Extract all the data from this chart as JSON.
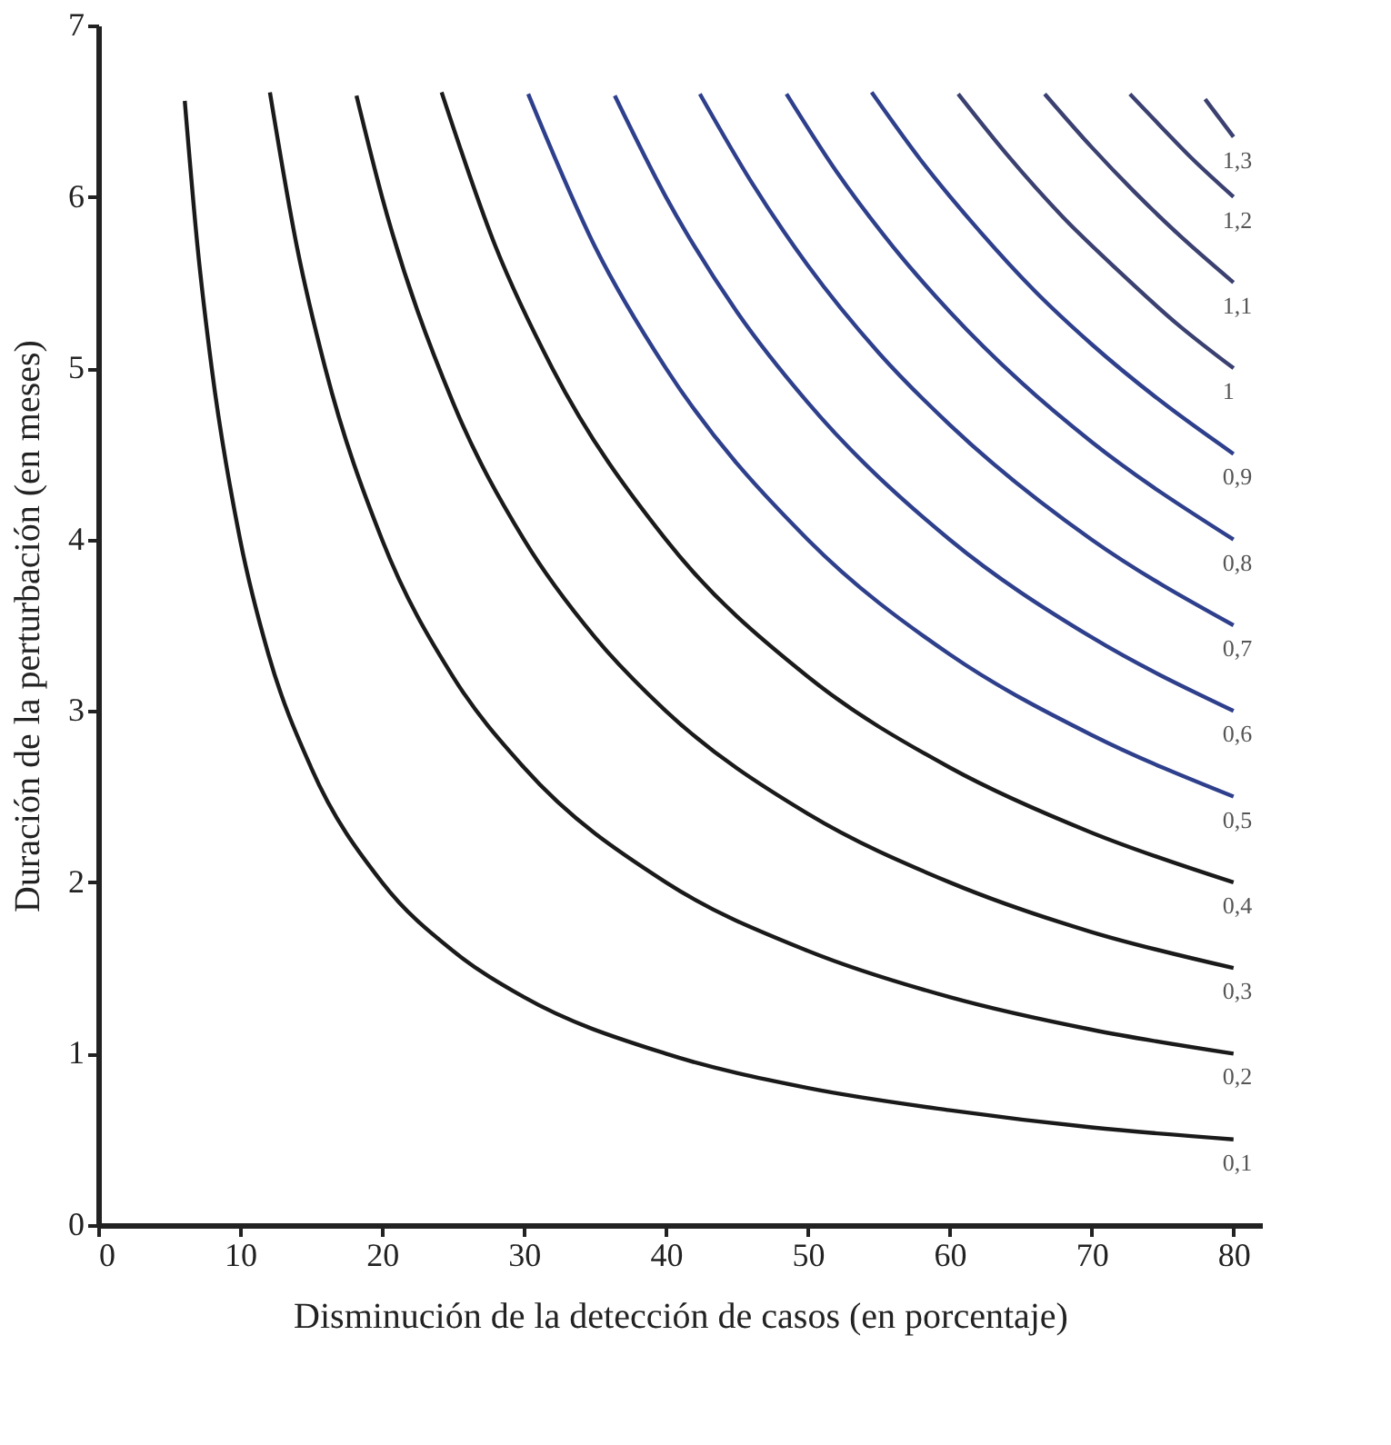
{
  "chart_data": {
    "type": "line",
    "xlabel": "Disminución de la detección de casos (en porcentaje)",
    "ylabel": "Duración de la perturbación (en meses)",
    "xlim": [
      0,
      82
    ],
    "xticks": [
      0,
      10,
      20,
      30,
      40,
      50,
      60,
      70,
      80
    ],
    "ylim": [
      0,
      7
    ],
    "yticks": [
      0,
      1,
      2,
      3,
      4,
      5,
      6,
      7
    ],
    "grid": false,
    "legend": false,
    "series": [
      {
        "name": "0,1",
        "color": "#1a1a1a",
        "x": [
          6.1,
          7,
          8,
          10,
          12,
          15,
          20,
          25,
          30,
          40,
          50,
          60,
          70,
          80
        ],
        "values": [
          6.56,
          5.71,
          5.0,
          4.0,
          3.33,
          2.67,
          2.0,
          1.6,
          1.33,
          1.0,
          0.8,
          0.67,
          0.57,
          0.5
        ]
      },
      {
        "name": "0,2",
        "color": "#1a1a1a",
        "x": [
          12.1,
          14,
          16,
          20,
          25,
          30,
          40,
          50,
          60,
          70,
          80
        ],
        "values": [
          6.61,
          5.71,
          5.0,
          4.0,
          3.2,
          2.67,
          2.0,
          1.6,
          1.33,
          1.14,
          1.0
        ]
      },
      {
        "name": "0,3",
        "color": "#1a1a1a",
        "x": [
          18.2,
          20,
          25,
          30,
          35,
          40,
          50,
          60,
          70,
          80
        ],
        "values": [
          6.59,
          6.0,
          4.8,
          4.0,
          3.43,
          3.0,
          2.4,
          2.0,
          1.71,
          1.5
        ]
      },
      {
        "name": "0,4",
        "color": "#1a1a1a",
        "x": [
          24.2,
          28,
          32,
          40,
          50,
          60,
          70,
          80
        ],
        "values": [
          6.61,
          5.71,
          5.0,
          4.0,
          3.2,
          2.67,
          2.29,
          2.0
        ]
      },
      {
        "name": "0,5",
        "color": "#2e3f8c",
        "x": [
          30.3,
          35,
          40,
          50,
          60,
          70,
          80
        ],
        "values": [
          6.6,
          5.71,
          5.0,
          4.0,
          3.33,
          2.86,
          2.5
        ]
      },
      {
        "name": "0,6",
        "color": "#2e3f8c",
        "x": [
          36.4,
          40,
          45,
          50,
          60,
          70,
          80
        ],
        "values": [
          6.59,
          6.0,
          5.33,
          4.8,
          4.0,
          3.43,
          3.0
        ]
      },
      {
        "name": "0,7",
        "color": "#2e3f8c",
        "x": [
          42.4,
          46,
          50,
          55,
          60,
          70,
          80
        ],
        "values": [
          6.6,
          6.09,
          5.6,
          5.09,
          4.67,
          4.0,
          3.5
        ]
      },
      {
        "name": "0,8",
        "color": "#2e3f8c",
        "x": [
          48.5,
          52,
          56,
          60,
          65,
          70,
          80
        ],
        "values": [
          6.6,
          6.15,
          5.71,
          5.33,
          4.92,
          4.57,
          4.0
        ]
      },
      {
        "name": "0,9",
        "color": "#2e3f8c",
        "x": [
          54.5,
          58,
          62,
          66,
          70,
          75,
          80
        ],
        "values": [
          6.61,
          6.21,
          5.81,
          5.45,
          5.14,
          4.8,
          4.5
        ]
      },
      {
        "name": "1",
        "color": "#3a4070",
        "x": [
          60.6,
          64,
          68,
          72,
          76,
          80
        ],
        "values": [
          6.6,
          6.25,
          5.88,
          5.56,
          5.26,
          5.0
        ]
      },
      {
        "name": "1,1",
        "color": "#3a4070",
        "x": [
          66.7,
          70,
          73,
          76,
          80
        ],
        "values": [
          6.6,
          6.29,
          6.03,
          5.79,
          5.5
        ]
      },
      {
        "name": "1,2",
        "color": "#3a4070",
        "x": [
          72.7,
          75,
          77,
          80
        ],
        "values": [
          6.6,
          6.4,
          6.23,
          6.0
        ]
      },
      {
        "name": "1,3",
        "color": "#3a4070",
        "x": [
          78,
          80
        ],
        "values": [
          6.57,
          6.35
        ]
      }
    ]
  }
}
